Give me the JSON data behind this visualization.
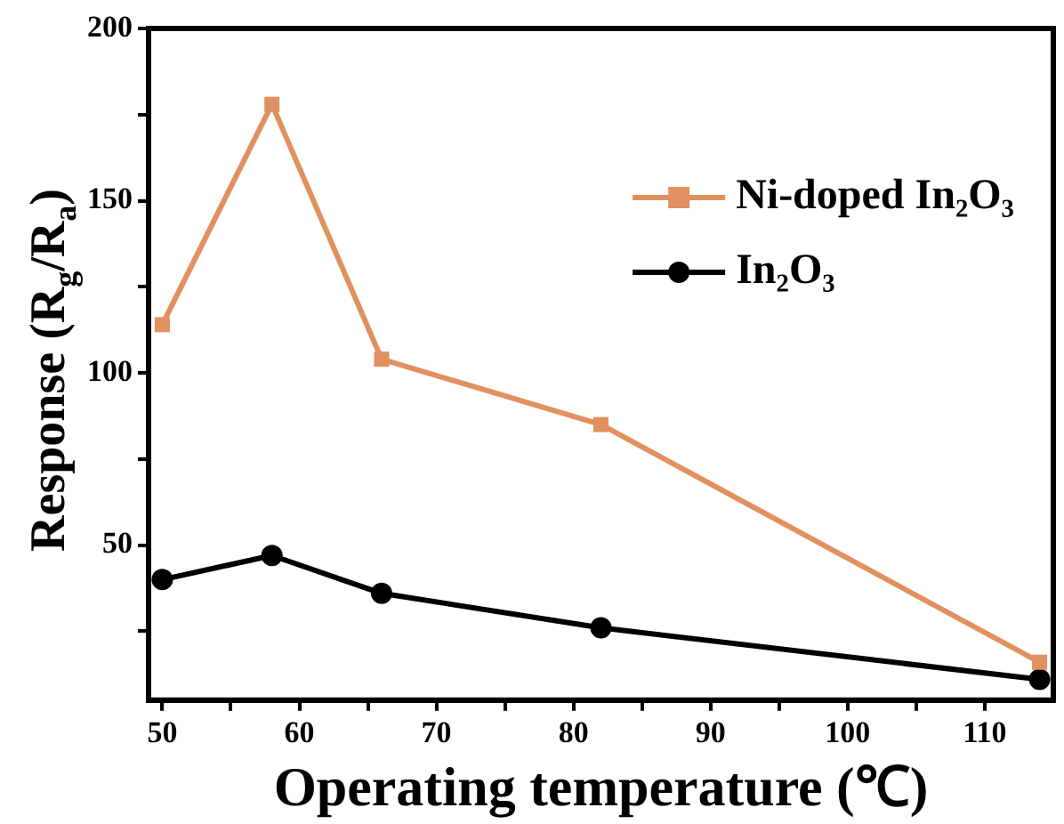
{
  "chart_data": {
    "type": "line",
    "xlabel": "Operating temperature (℃)",
    "ylabel": "Response (R$_{g}$/R$_{a}$)",
    "x": [
      50,
      58,
      66,
      82,
      114
    ],
    "series": [
      {
        "name": "Ni-doped In₂O₃",
        "color": "#e0915f",
        "marker": "square",
        "values": [
          114,
          178,
          104,
          85,
          16
        ]
      },
      {
        "name": "In₂O₃",
        "color": "#000000",
        "marker": "circle",
        "values": [
          40,
          47,
          36,
          26,
          11
        ]
      }
    ],
    "xlim": [
      49,
      115
    ],
    "xticks": [
      50,
      {
        "value": 55,
        "label": null
      },
      60,
      {
        "value": 65,
        "label": null
      },
      70,
      {
        "value": 75,
        "label": null
      },
      80,
      {
        "value": 85,
        "label": null
      },
      90,
      {
        "value": 95,
        "label": null
      },
      100,
      {
        "value": 105,
        "label": null
      },
      110
    ],
    "ylim": [
      5,
      200
    ],
    "yticks": [
      {
        "value": 25,
        "label": null
      },
      50,
      {
        "value": 75,
        "label": null
      },
      100,
      {
        "value": 125,
        "label": null
      },
      150,
      {
        "value": 175,
        "label": null
      },
      200
    ],
    "grid": false,
    "legend": "top right",
    "line_style": "solid"
  }
}
